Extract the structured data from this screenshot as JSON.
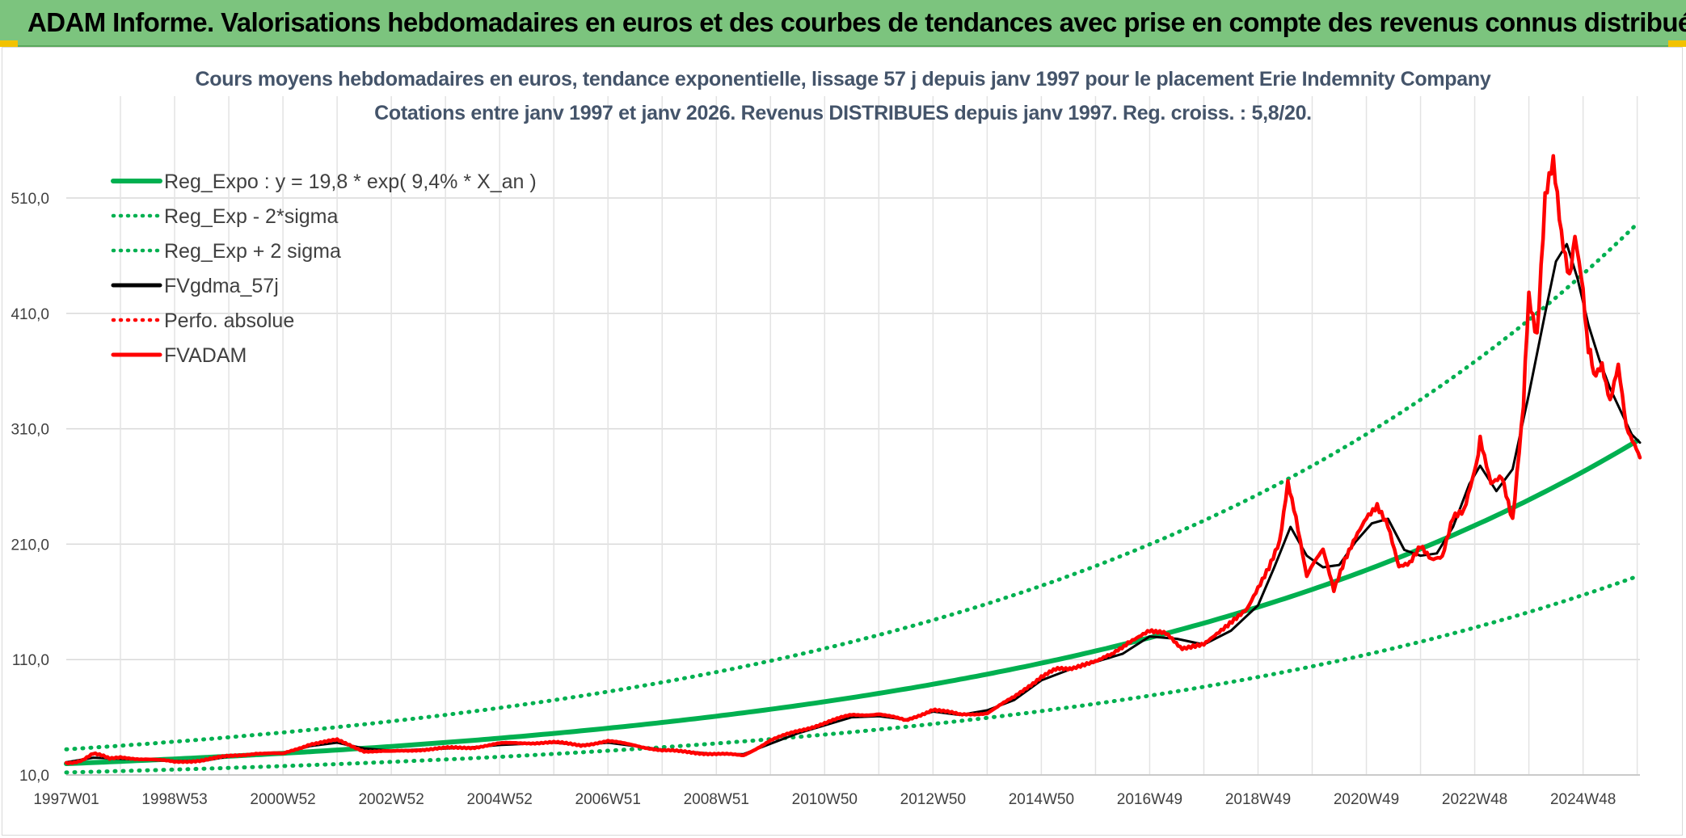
{
  "banner": {
    "title": "ADAM Informe. Valorisations hebdomadaires en euros et des courbes de tendances avec prise en compte des revenus connus distribués"
  },
  "colors": {
    "banner_bg": "#7cc47e",
    "reg": "#00b050",
    "fvgdma": "#000000",
    "fvadam": "#ff0000",
    "perfo": "#ff0000"
  },
  "chart_data": {
    "type": "line",
    "title_line1": "Cours moyens hebdomadaires en euros, tendance exponentielle, lissage 57 j depuis janv 1997 pour le placement Erie Indemnity Company",
    "title_line2": "Cotations entre janv 1997 et janv 2026. Revenus DISTRIBUES depuis janv 1997. Reg. croiss. : 5,8/20.",
    "x_range": [
      1997.0,
      2026.05
    ],
    "ylim": [
      10,
      560
    ],
    "y_ticks": [
      10,
      110,
      210,
      310,
      410,
      510
    ],
    "y_tick_labels": [
      "10,0",
      "110,0",
      "210,0",
      "310,0",
      "410,0",
      "510,0"
    ],
    "x_ticks": [
      {
        "label": "1997W01",
        "x": 1997.0
      },
      {
        "label": "1998W53",
        "x": 1999.0
      },
      {
        "label": "2000W52",
        "x": 2001.0
      },
      {
        "label": "2002W52",
        "x": 2003.0
      },
      {
        "label": "2004W52",
        "x": 2005.0
      },
      {
        "label": "2006W51",
        "x": 2007.0
      },
      {
        "label": "2008W51",
        "x": 2009.0
      },
      {
        "label": "2010W50",
        "x": 2011.0
      },
      {
        "label": "2012W50",
        "x": 2013.0
      },
      {
        "label": "2014W50",
        "x": 2015.0
      },
      {
        "label": "2016W49",
        "x": 2017.0
      },
      {
        "label": "2018W49",
        "x": 2019.0
      },
      {
        "label": "2020W49",
        "x": 2021.0
      },
      {
        "label": "2022W48",
        "x": 2023.0
      },
      {
        "label": "2024W48",
        "x": 2025.0
      }
    ],
    "grid": true,
    "legend_position": "top-left",
    "legend": [
      {
        "name": "Reg_Expo : y = 19,8 * exp( 9,4% *  X_an )",
        "color": "#00b050",
        "style": "solid"
      },
      {
        "name": "Reg_Exp - 2*sigma",
        "color": "#00b050",
        "style": "dotted"
      },
      {
        "name": "Reg_Exp + 2 sigma",
        "color": "#00b050",
        "style": "dotted"
      },
      {
        "name": "FVgdma_57j",
        "color": "#000000",
        "style": "solid"
      },
      {
        "name": "Perfo. absolue",
        "color": "#ff0000",
        "style": "dotted"
      },
      {
        "name": "FVADAM",
        "color": "#ff0000",
        "style": "solid"
      }
    ],
    "series": [
      {
        "name": "Reg_Expo",
        "x": [
          1997,
          1999,
          2001,
          2003,
          2005,
          2007,
          2009,
          2011,
          2013,
          2015,
          2017,
          2019,
          2021,
          2023,
          2025,
          2026.05
        ],
        "values": [
          19.8,
          23.9,
          28.8,
          34.7,
          41.8,
          50.4,
          60.8,
          73.3,
          88.4,
          106.6,
          128.5,
          154.9,
          186.8,
          225.2,
          271.5,
          301
        ]
      },
      {
        "name": "Reg_Exp - 2*sigma",
        "x": [
          1997,
          1999,
          2001,
          2003,
          2005,
          2007,
          2009,
          2011,
          2013,
          2015,
          2017,
          2019,
          2021,
          2023,
          2025,
          2026.05
        ],
        "values": [
          12.2,
          14.7,
          17.7,
          21.3,
          25.7,
          31.0,
          37.4,
          45.1,
          54.4,
          65.6,
          79.1,
          95.4,
          115.0,
          138.7,
          167.2,
          183
        ]
      },
      {
        "name": "Reg_Exp + 2 sigma",
        "x": [
          1997,
          1999,
          2001,
          2003,
          2005,
          2007,
          2009,
          2011,
          2013,
          2015,
          2017,
          2019,
          2021,
          2023,
          2025,
          2026.05
        ],
        "values": [
          32.2,
          38.8,
          46.8,
          56.4,
          68.0,
          82.0,
          98.9,
          119.2,
          143.7,
          173.3,
          208.9,
          251.9,
          303.7,
          366.2,
          441.5,
          490
        ]
      },
      {
        "name": "FVADAM",
        "x": [
          1997.0,
          1997.3,
          1997.5,
          1997.8,
          1998.0,
          1998.5,
          1999.0,
          1999.5,
          2000.0,
          2000.5,
          2001.0,
          2001.5,
          2002.0,
          2002.5,
          2003.0,
          2003.5,
          2004.0,
          2004.5,
          2005.0,
          2005.5,
          2006.0,
          2006.5,
          2007.0,
          2007.5,
          2008.0,
          2008.5,
          2009.0,
          2009.5,
          2010.0,
          2010.5,
          2011.0,
          2011.5,
          2012.0,
          2012.5,
          2013.0,
          2013.5,
          2014.0,
          2014.5,
          2015.0,
          2015.3,
          2015.6,
          2016.0,
          2016.3,
          2016.6,
          2017.0,
          2017.3,
          2017.6,
          2018.0,
          2018.4,
          2018.8,
          2019.2,
          2019.4,
          2019.55,
          2019.7,
          2019.9,
          2020.2,
          2020.4,
          2020.6,
          2020.8,
          2021.0,
          2021.2,
          2021.4,
          2021.6,
          2021.8,
          2022.0,
          2022.2,
          2022.4,
          2022.6,
          2022.8,
          2023.0,
          2023.1,
          2023.3,
          2023.5,
          2023.7,
          2023.9,
          2024.0,
          2024.15,
          2024.3,
          2024.45,
          2024.6,
          2024.75,
          2024.85,
          2025.0,
          2025.1,
          2025.2,
          2025.35,
          2025.5,
          2025.65,
          2025.8,
          2025.95,
          2026.05
        ],
        "values": [
          20,
          23,
          29,
          24,
          25,
          24,
          21,
          23,
          26,
          29,
          28,
          37,
          40,
          31,
          30,
          32,
          33,
          34,
          37,
          38,
          38,
          36,
          39,
          36,
          31,
          30,
          28,
          27,
          40,
          48,
          55,
          62,
          63,
          57,
          67,
          62,
          64,
          77,
          96,
          101,
          104,
          110,
          113,
          126,
          137,
          131,
          121,
          125,
          140,
          156,
          192,
          215,
          265,
          230,
          180,
          208,
          172,
          198,
          218,
          235,
          245,
          228,
          192,
          195,
          210,
          198,
          200,
          235,
          240,
          275,
          300,
          262,
          268,
          230,
          330,
          425,
          395,
          510,
          535,
          478,
          447,
          470,
          430,
          380,
          355,
          370,
          335,
          360,
          310,
          300,
          285
        ]
      },
      {
        "name": "FVgdma_57j",
        "x": [
          1997.0,
          1997.5,
          1998.0,
          1998.5,
          1999.0,
          1999.5,
          2000.0,
          2000.5,
          2001.0,
          2001.5,
          2002.0,
          2002.5,
          2003.0,
          2003.5,
          2004.0,
          2004.5,
          2005.0,
          2005.5,
          2006.0,
          2006.5,
          2007.0,
          2007.5,
          2008.0,
          2008.5,
          2009.0,
          2009.5,
          2010.0,
          2010.5,
          2011.0,
          2011.5,
          2012.0,
          2012.5,
          2013.0,
          2013.5,
          2014.0,
          2014.5,
          2015.0,
          2015.5,
          2016.0,
          2016.5,
          2017.0,
          2017.5,
          2018.0,
          2018.5,
          2019.0,
          2019.3,
          2019.6,
          2019.9,
          2020.2,
          2020.5,
          2020.8,
          2021.1,
          2021.4,
          2021.7,
          2022.0,
          2022.3,
          2022.6,
          2022.9,
          2023.1,
          2023.4,
          2023.7,
          2024.0,
          2024.3,
          2024.5,
          2024.7,
          2024.9,
          2025.1,
          2025.3,
          2025.5,
          2025.7,
          2025.9,
          2026.05
        ],
        "values": [
          21,
          25,
          24,
          23,
          22,
          22,
          26,
          28,
          29,
          35,
          38,
          33,
          31,
          32,
          33,
          34,
          36,
          37,
          38,
          36,
          38,
          35,
          32,
          30,
          28,
          28,
          37,
          46,
          53,
          60,
          61,
          58,
          65,
          62,
          66,
          75,
          92,
          101,
          108,
          115,
          130,
          128,
          123,
          135,
          157,
          190,
          225,
          200,
          190,
          192,
          212,
          228,
          232,
          205,
          200,
          202,
          225,
          262,
          278,
          256,
          275,
          340,
          410,
          455,
          470,
          440,
          400,
          370,
          345,
          325,
          305,
          298
        ]
      }
    ]
  }
}
